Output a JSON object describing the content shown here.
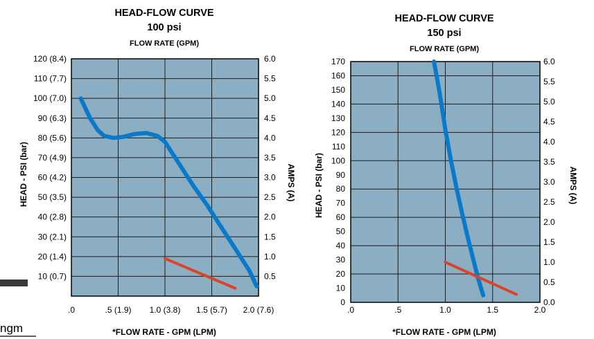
{
  "colors": {
    "plot_bg": "#8caec3",
    "grid": "#1a1a1a",
    "head_curve": "#0a7ac8",
    "amps_curve": "#d9452b"
  },
  "left_fragment": {
    "text": "ngm"
  },
  "chart_data": [
    {
      "type": "line",
      "title": "HEAD-FLOW CURVE",
      "subtitle": "100 psi",
      "top_label": "FLOW RATE (GPM)",
      "xlabel": "*FLOW RATE - GPM (LPM)",
      "ylabel": "HEAD - PSI (bar)",
      "y2label": "AMPS (A)",
      "xlim": [
        0,
        2.0
      ],
      "ylim": [
        0,
        120
      ],
      "y2lim": [
        0,
        6.0
      ],
      "x_ticks": [
        {
          "value": 0,
          "label": ".0"
        },
        {
          "value": 0.5,
          "label": ".5 (1.9)"
        },
        {
          "value": 1.0,
          "label": "1.0 (3.8)"
        },
        {
          "value": 1.5,
          "label": "1.5 (5.7)"
        },
        {
          "value": 2.0,
          "label": "2.0 (7.6)"
        }
      ],
      "y_ticks": [
        {
          "value": 10,
          "label": "10 (0.7)"
        },
        {
          "value": 20,
          "label": "20 (1.4)"
        },
        {
          "value": 30,
          "label": "30 (2.1)"
        },
        {
          "value": 40,
          "label": "40 (2.8)"
        },
        {
          "value": 50,
          "label": "50 (3.5)"
        },
        {
          "value": 60,
          "label": "60 (4.2)"
        },
        {
          "value": 70,
          "label": "70 (4.9)"
        },
        {
          "value": 80,
          "label": "80 (5.6)"
        },
        {
          "value": 90,
          "label": "90 (6.3)"
        },
        {
          "value": 100,
          "label": "100 (7.0)"
        },
        {
          "value": 110,
          "label": "110 (7.7)"
        },
        {
          "value": 120,
          "label": "120 (8.4)"
        }
      ],
      "y2_ticks": [
        {
          "value": 0.5,
          "label": "0.5"
        },
        {
          "value": 1.0,
          "label": "1.0"
        },
        {
          "value": 1.5,
          "label": "1.5"
        },
        {
          "value": 2.0,
          "label": "2.0"
        },
        {
          "value": 2.5,
          "label": "2.5"
        },
        {
          "value": 3.0,
          "label": "3.0"
        },
        {
          "value": 3.5,
          "label": "3.5"
        },
        {
          "value": 4.0,
          "label": "4.0"
        },
        {
          "value": 4.5,
          "label": "4.5"
        },
        {
          "value": 5.0,
          "label": "5.0"
        },
        {
          "value": 5.5,
          "label": "5.5"
        },
        {
          "value": 6.0,
          "label": "6.0"
        }
      ],
      "vgrid": [
        0.5,
        1.0,
        1.5
      ],
      "hgrid": [
        10,
        20,
        30,
        40,
        50,
        60,
        70,
        80,
        90,
        100,
        110
      ],
      "series": [
        {
          "axis": "left",
          "color_key": "head_curve",
          "x": [
            0.1,
            0.2,
            0.28,
            0.35,
            0.45,
            0.55,
            0.68,
            0.8,
            0.92,
            1.0,
            1.15,
            1.3,
            1.45,
            1.6,
            1.75,
            1.9,
            1.98
          ],
          "y": [
            100,
            90,
            84,
            81,
            80,
            80.5,
            82,
            82.5,
            81,
            78,
            67,
            56,
            46,
            35,
            24,
            13,
            5
          ]
        },
        {
          "axis": "right",
          "color_key": "amps_curve",
          "x": [
            1.0,
            1.75
          ],
          "y": [
            0.95,
            0.2
          ]
        }
      ]
    },
    {
      "type": "line",
      "title": "HEAD-FLOW CURVE",
      "subtitle": "150 psi",
      "top_label": "FLOW RATE (GPM)",
      "xlabel": "*FLOW RATE - GPM (LPM)",
      "ylabel": "HEAD - PSI (bar)",
      "y2label": "AMPS (A)",
      "xlim": [
        0,
        2.0
      ],
      "ylim": [
        0,
        170
      ],
      "y2lim": [
        0,
        6.0
      ],
      "x_ticks": [
        {
          "value": 0,
          "label": ".0"
        },
        {
          "value": 0.5,
          "label": ".5"
        },
        {
          "value": 1.0,
          "label": "1.0"
        },
        {
          "value": 1.5,
          "label": "1.5"
        },
        {
          "value": 2.0,
          "label": "2.0"
        }
      ],
      "y_ticks": [
        {
          "value": 0,
          "label": "0"
        },
        {
          "value": 10,
          "label": "10"
        },
        {
          "value": 20,
          "label": "20"
        },
        {
          "value": 30,
          "label": "30"
        },
        {
          "value": 40,
          "label": "40"
        },
        {
          "value": 50,
          "label": "50"
        },
        {
          "value": 60,
          "label": "60"
        },
        {
          "value": 70,
          "label": "70"
        },
        {
          "value": 80,
          "label": "80"
        },
        {
          "value": 90,
          "label": "90"
        },
        {
          "value": 100,
          "label": "100"
        },
        {
          "value": 110,
          "label": "110"
        },
        {
          "value": 120,
          "label": "120"
        },
        {
          "value": 130,
          "label": "130"
        },
        {
          "value": 140,
          "label": "140"
        },
        {
          "value": 150,
          "label": "150"
        },
        {
          "value": 160,
          "label": "160"
        },
        {
          "value": 170,
          "label": "170"
        }
      ],
      "y2_ticks": [
        {
          "value": 0.0,
          "label": "0.0"
        },
        {
          "value": 0.5,
          "label": "0.5"
        },
        {
          "value": 1.0,
          "label": "1.0"
        },
        {
          "value": 1.5,
          "label": "1.5"
        },
        {
          "value": 2.0,
          "label": "2.0"
        },
        {
          "value": 2.5,
          "label": "2.5"
        },
        {
          "value": 3.0,
          "label": "3.0"
        },
        {
          "value": 3.5,
          "label": "3.5"
        },
        {
          "value": 4.0,
          "label": "4.0"
        },
        {
          "value": 4.5,
          "label": "4.5"
        },
        {
          "value": 5.0,
          "label": "5.0"
        },
        {
          "value": 5.5,
          "label": "5.5"
        },
        {
          "value": 6.0,
          "label": "6.0"
        }
      ],
      "vgrid": [
        0.5,
        1.0,
        1.5
      ],
      "hgrid": [
        20,
        40,
        60,
        80,
        100,
        120,
        140,
        160
      ],
      "series": [
        {
          "axis": "left",
          "color_key": "head_curve",
          "x": [
            0.88,
            0.94,
            1.0,
            1.06,
            1.12,
            1.18,
            1.24,
            1.3,
            1.35,
            1.4
          ],
          "y": [
            170,
            148,
            122,
            100,
            80,
            62,
            45,
            29,
            16,
            5
          ]
        },
        {
          "axis": "right",
          "color_key": "amps_curve",
          "x": [
            1.0,
            1.75
          ],
          "y": [
            1.0,
            0.2
          ]
        }
      ]
    }
  ]
}
